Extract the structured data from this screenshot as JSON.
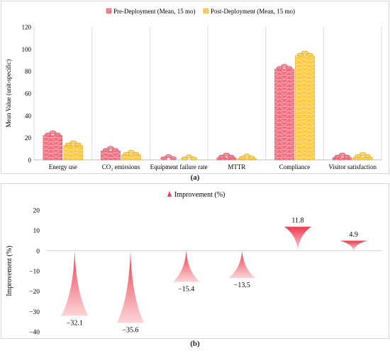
{
  "chart_data": [
    {
      "type": "bar",
      "panel_label": "(a)",
      "legend_position": "top",
      "ylabel": "Mean Value (unit-specific)",
      "ylim": [
        0,
        120
      ],
      "yticks": [
        0,
        20,
        40,
        60,
        80,
        100,
        120
      ],
      "grid": "vertical category separators",
      "categories": [
        "Energy use",
        "CO₂ emissions",
        "Equipment failure rate",
        "MTTR",
        "Compliance",
        "Visitor satisfaction"
      ],
      "series": [
        {
          "name": "Pre-Deployment (Mean, 15 mo)",
          "values": [
            22.0,
            8.0,
            0.5,
            2.0,
            82.0,
            2.0
          ],
          "color": "#f26d7d"
        },
        {
          "name": "Post-Deployment (Mean, 15 mo)",
          "values": [
            13.0,
            4.5,
            0.3,
            1.0,
            94.0,
            2.5
          ],
          "color": "#ffc83d"
        }
      ]
    },
    {
      "type": "bar",
      "panel_label": "(b)",
      "legend_position": "top",
      "ylabel": "Improvement (%)",
      "ylim": [
        -40,
        20
      ],
      "yticks": [
        -40,
        -30,
        -20,
        -10,
        0,
        10,
        20
      ],
      "grid": "none",
      "categories": [
        "Energy use",
        "CO₂ emissions",
        "Equipment failure rate",
        "MTTR",
        "Compliance",
        "Visitor satisfaction"
      ],
      "series": [
        {
          "name": "Improvement (%)",
          "values": [
            -32.1,
            -35.6,
            -15.4,
            -13.5,
            11.8,
            4.9
          ],
          "color": "#ee3a4f"
        }
      ],
      "data_labels": [
        "−32.1",
        "−35.6",
        "−15.4",
        "−13.5",
        "11.8",
        "4.9"
      ]
    }
  ]
}
